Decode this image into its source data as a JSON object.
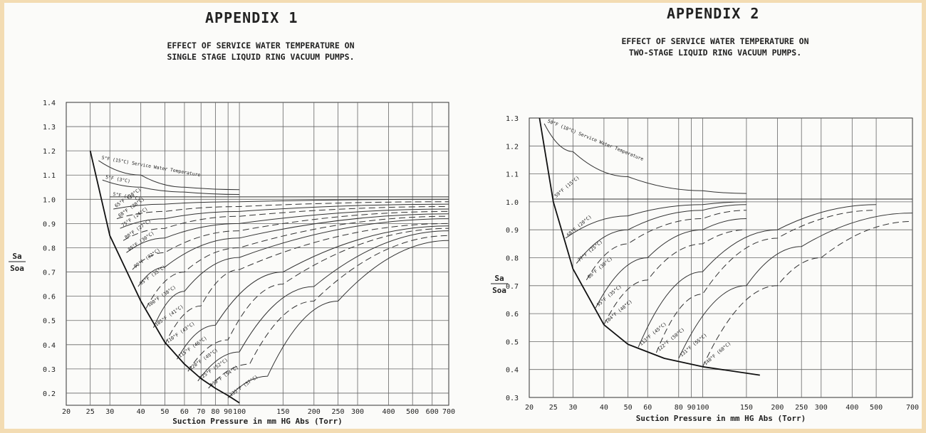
{
  "charts": [
    {
      "appendix": "APPENDIX 1",
      "title_lines": [
        "EFFECT OF SERVICE WATER TEMPERATURE ON",
        "SINGLE STAGE LIQUID RING VACUUM PUMPS."
      ],
      "xlabel": "Suction Pressure in mm HG Abs (Torr)",
      "ylabel_top": "Sa",
      "ylabel_bottom": "Soa",
      "xticks": [
        "20",
        "25",
        "30",
        "40",
        "50",
        "60",
        "70",
        "80",
        "90",
        "100",
        "150",
        "200",
        "250",
        "300",
        "400",
        "500",
        "600",
        "700"
      ],
      "yticks": [
        "0.2",
        "0.3",
        "0.4",
        "0.5",
        "0.6",
        "0.7",
        "0.8",
        "0.9",
        "1.0",
        "1.1",
        "1.2",
        "1.3",
        "1.4"
      ]
    },
    {
      "appendix": "APPENDIX 2",
      "title_lines": [
        "EFFECT OF SERVICE WATER TEMPERATURE ON",
        "TWO-STAGE LIQUID RING VACUUM PUMPS."
      ],
      "xlabel": "Suction Pressure in mm HG Abs (Torr)",
      "ylabel_top": "Sa",
      "ylabel_bottom": "Soa",
      "xticks": [
        "20",
        "25",
        "30",
        "40",
        "50",
        "60",
        "80",
        "90",
        "100",
        "150",
        "200",
        "250",
        "300",
        "400",
        "500",
        "700"
      ],
      "yticks": [
        "0.3",
        "0.4",
        "0.5",
        "0.6",
        "0.7",
        "0.8",
        "0.9",
        "1.0",
        "1.1",
        "1.2",
        "1.3"
      ]
    }
  ],
  "chart_data": [
    {
      "type": "line",
      "title": "EFFECT OF SERVICE WATER TEMPERATURE ON SINGLE STAGE LIQUID RING VACUUM PUMPS.",
      "xlabel": "Suction Pressure in mm HG Abs (Torr)",
      "ylabel": "Sa / Soa",
      "xscale": "log",
      "xlim": [
        20,
        700
      ],
      "ylim": [
        0.15,
        1.4
      ],
      "grid": true,
      "envelope": {
        "x": [
          25,
          30,
          40,
          50,
          60,
          70,
          80,
          90,
          100
        ],
        "y": [
          1.2,
          0.85,
          0.58,
          0.41,
          0.32,
          0.26,
          0.22,
          0.19,
          0.16
        ]
      },
      "series": [
        {
          "name": "5°F (15°C) Service Water Temperature",
          "x": [
            27,
            40,
            60,
            100
          ],
          "y": [
            1.16,
            1.1,
            1.05,
            1.04
          ]
        },
        {
          "name": "5°F (3°C)",
          "x": [
            28,
            40,
            60,
            100
          ],
          "y": [
            1.08,
            1.05,
            1.03,
            1.02
          ]
        },
        {
          "name": "5°F (15°C)",
          "x": [
            30,
            50,
            100,
            700
          ],
          "y": [
            1.01,
            1.01,
            1.01,
            1.01
          ]
        },
        {
          "name": "65°F (18°C)",
          "x": [
            31,
            50,
            100,
            700
          ],
          "y": [
            0.96,
            0.98,
            0.99,
            1.0
          ]
        },
        {
          "name": "68°F (20°C)",
          "x": [
            32,
            50,
            100,
            700
          ],
          "y": [
            0.92,
            0.95,
            0.97,
            0.99
          ]
        },
        {
          "name": "75°F (24°C)",
          "x": [
            33,
            50,
            100,
            700
          ],
          "y": [
            0.88,
            0.92,
            0.95,
            0.98
          ]
        },
        {
          "name": "80°F (27°C)",
          "x": [
            34,
            50,
            100,
            700
          ],
          "y": [
            0.83,
            0.88,
            0.93,
            0.97
          ]
        },
        {
          "name": "85°F (30°C)",
          "x": [
            35,
            50,
            100,
            700
          ],
          "y": [
            0.78,
            0.84,
            0.9,
            0.96
          ]
        },
        {
          "name": "90°F (32°C)",
          "x": [
            37,
            50,
            100,
            700
          ],
          "y": [
            0.71,
            0.78,
            0.87,
            0.95
          ]
        },
        {
          "name": "95°F (35°C)",
          "x": [
            39,
            50,
            100,
            700
          ],
          "y": [
            0.64,
            0.72,
            0.84,
            0.94
          ]
        },
        {
          "name": "100°F (38°C)",
          "x": [
            42,
            60,
            100,
            700
          ],
          "y": [
            0.55,
            0.7,
            0.8,
            0.93
          ]
        },
        {
          "name": "105°F (41°C)",
          "x": [
            45,
            60,
            100,
            700
          ],
          "y": [
            0.47,
            0.62,
            0.76,
            0.92
          ]
        },
        {
          "name": "110°F (43°C)",
          "x": [
            50,
            70,
            100,
            700
          ],
          "y": [
            0.4,
            0.56,
            0.71,
            0.9
          ]
        },
        {
          "name": "115°F (46°C)",
          "x": [
            56,
            80,
            150,
            700
          ],
          "y": [
            0.34,
            0.48,
            0.7,
            0.89
          ]
        },
        {
          "name": "120°F (49°C)",
          "x": [
            62,
            90,
            150,
            700
          ],
          "y": [
            0.29,
            0.42,
            0.65,
            0.88
          ]
        },
        {
          "name": "125°F (52°C)",
          "x": [
            68,
            100,
            200,
            700
          ],
          "y": [
            0.25,
            0.37,
            0.64,
            0.87
          ]
        },
        {
          "name": "130°F (54°C)",
          "x": [
            75,
            110,
            200,
            700
          ],
          "y": [
            0.22,
            0.32,
            0.58,
            0.85
          ]
        },
        {
          "name": "135°F (57°C)",
          "x": [
            90,
            130,
            250,
            700
          ],
          "y": [
            0.18,
            0.27,
            0.58,
            0.83
          ]
        }
      ]
    },
    {
      "type": "line",
      "title": "EFFECT OF SERVICE WATER TEMPERATURE ON TWO-STAGE LIQUID RING VACUUM PUMPS.",
      "xlabel": "Suction Pressure in mm HG Abs (Torr)",
      "ylabel": "Sa / Soa",
      "xscale": "log",
      "xlim": [
        20,
        700
      ],
      "ylim": [
        0.3,
        1.3
      ],
      "grid": true,
      "envelope": {
        "x": [
          22,
          25,
          30,
          40,
          50,
          70,
          100,
          170
        ],
        "y": [
          1.3,
          1.0,
          0.76,
          0.56,
          0.49,
          0.44,
          0.41,
          0.38
        ]
      },
      "series": [
        {
          "name": "50°F (10°C) Service Water Temperature",
          "x": [
            23,
            30,
            50,
            100,
            150
          ],
          "y": [
            1.28,
            1.18,
            1.09,
            1.04,
            1.03
          ]
        },
        {
          "name": "59°F (15°C)",
          "x": [
            25,
            50,
            100,
            700
          ],
          "y": [
            1.01,
            1.01,
            1.01,
            1.01
          ]
        },
        {
          "name": "68°F (20°C)",
          "x": [
            28,
            50,
            100,
            150
          ],
          "y": [
            0.87,
            0.95,
            0.99,
            1.0
          ]
        },
        {
          "name": "77°F (25°C)",
          "x": [
            31,
            50,
            100,
            150
          ],
          "y": [
            0.78,
            0.9,
            0.97,
            0.99
          ]
        },
        {
          "name": "86°F (30°C)",
          "x": [
            34,
            50,
            100,
            150
          ],
          "y": [
            0.72,
            0.85,
            0.94,
            0.97
          ]
        },
        {
          "name": "95°F (35°C)",
          "x": [
            37,
            60,
            100,
            150
          ],
          "y": [
            0.62,
            0.8,
            0.9,
            0.94
          ]
        },
        {
          "name": "104°F (40°C)",
          "x": [
            40,
            60,
            100,
            150
          ],
          "y": [
            0.56,
            0.72,
            0.85,
            0.9
          ]
        },
        {
          "name": "113°F (45°C)",
          "x": [
            55,
            100,
            200,
            500
          ],
          "y": [
            0.48,
            0.75,
            0.9,
            0.99
          ]
        },
        {
          "name": "122°F (50°C)",
          "x": [
            65,
            100,
            200,
            500
          ],
          "y": [
            0.46,
            0.67,
            0.87,
            0.97
          ]
        },
        {
          "name": "131°F (55°C)",
          "x": [
            80,
            150,
            250,
            700
          ],
          "y": [
            0.44,
            0.7,
            0.84,
            0.96
          ]
        },
        {
          "name": "140°F (60°C)",
          "x": [
            100,
            200,
            300,
            700
          ],
          "y": [
            0.41,
            0.7,
            0.8,
            0.93
          ]
        }
      ]
    }
  ]
}
